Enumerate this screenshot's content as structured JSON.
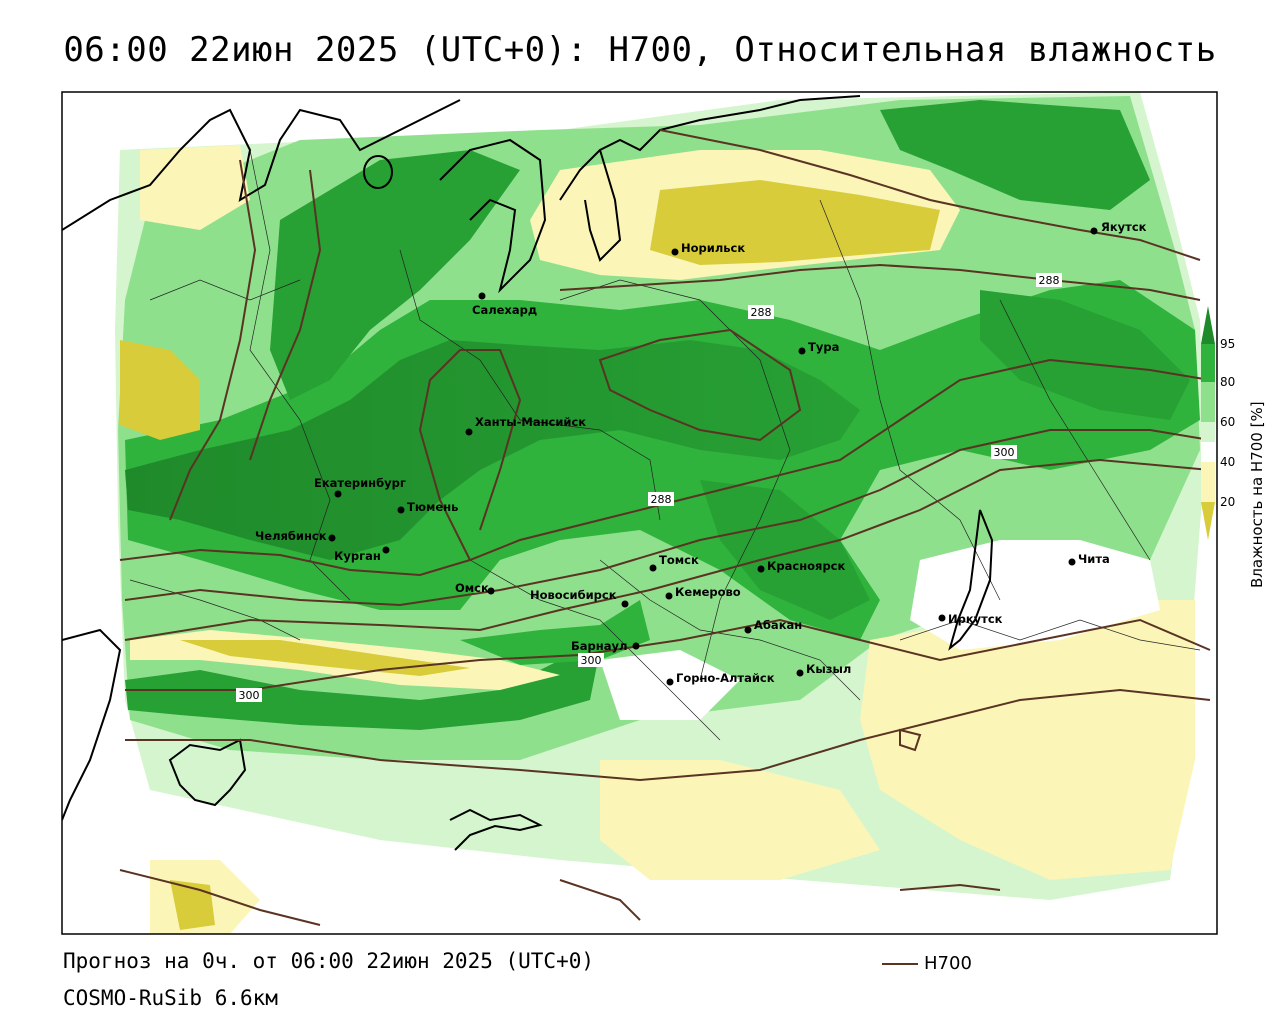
{
  "title": "06:00 22июн 2025 (UTC+0): H700, Относительная влажность",
  "footer": {
    "forecast": "Прогноз на 0ч. от 06:00 22июн 2025 (UTC+0)",
    "model": "COSMO-RuSib 6.6км"
  },
  "legend": {
    "line_label": "H700",
    "line_color": "#5a3323"
  },
  "colorbar": {
    "title": "Влажность на H700 [%]",
    "ticks": [
      "95",
      "80",
      "60",
      "40",
      "20"
    ],
    "colors": {
      "above_95": "#1f8a2a",
      "80_95": "#2fb33c",
      "60_80": "#8fe08d",
      "50_60": "#d4f5cd",
      "40_50": "#ffffff",
      "20_40": "#fbf6b8",
      "below_20": "#d8cc3a"
    }
  },
  "cities": [
    {
      "name": "Якутск"
    },
    {
      "name": "Норильск"
    },
    {
      "name": "Салехард"
    },
    {
      "name": "Тура"
    },
    {
      "name": "Ханты-Мансийск"
    },
    {
      "name": "Екатеринбург"
    },
    {
      "name": "Тюмень"
    },
    {
      "name": "Челябинск"
    },
    {
      "name": "Курган"
    },
    {
      "name": "Омск"
    },
    {
      "name": "Новосибирск"
    },
    {
      "name": "Томск"
    },
    {
      "name": "Кемерово"
    },
    {
      "name": "Красноярск"
    },
    {
      "name": "Барнаул"
    },
    {
      "name": "Абакан"
    },
    {
      "name": "Горно-Алтайск"
    },
    {
      "name": "Кызыл"
    },
    {
      "name": "Иркутск"
    },
    {
      "name": "Чита"
    }
  ],
  "isolines": [
    {
      "label": "288"
    },
    {
      "label": "288"
    },
    {
      "label": "288"
    },
    {
      "label": "300"
    },
    {
      "label": "300"
    },
    {
      "label": "300"
    }
  ]
}
